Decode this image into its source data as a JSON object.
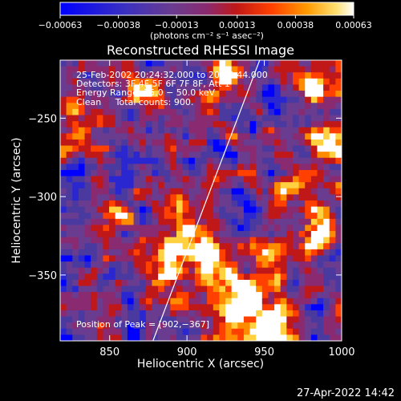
{
  "chart_data": {
    "type": "heatmap",
    "title": "Reconstructed RHESSI Image",
    "xlabel": "Heliocentric X (arcsec)",
    "ylabel": "Heliocentric Y (arcsec)",
    "xlim": [
      818,
      1000
    ],
    "ylim": [
      -392,
      -213
    ],
    "x_ticks": [
      850,
      900,
      950,
      1000
    ],
    "x_tick_labels": [
      "850",
      "900",
      "950",
      "1000"
    ],
    "y_ticks": [
      -250,
      -300,
      -350
    ],
    "y_tick_labels": [
      "−250",
      "−300",
      "−350"
    ],
    "colorbar": {
      "range": [
        -0.00063,
        0.00063
      ],
      "ticks": [
        -0.00063,
        -0.00038,
        -0.00013,
        0.00013,
        0.00038,
        0.00063
      ],
      "tick_labels": [
        "−0.00063",
        "−0.00038",
        "−0.00013",
        "0.00013",
        "0.00038",
        "0.00063"
      ],
      "units": "(photons cm⁻² s⁻¹ asec⁻²)"
    },
    "annotations": [
      "25-Feb-2002 20:24:32.000 to 20:25:44.000",
      "Detectors: 3F 4F 5F 6F 7F 8F, Att 1",
      "Energy Range: 25.0 − 50.0 keV",
      "Clean     Total counts: 900."
    ],
    "peak_label": "Position of Peak = [902,−367]",
    "peak": [
      902,
      -367
    ],
    "limb_line": [
      [
        878,
        -392
      ],
      [
        947,
        -213
      ]
    ],
    "colormap": [
      "#0000ff",
      "#2a26d0",
      "#4a3aa0",
      "#6a3c90",
      "#8a2a70",
      "#c01818",
      "#ff4000",
      "#ff8c00",
      "#ffd040",
      "#ffffff"
    ],
    "grid": false,
    "legend": "none"
  },
  "footer_date": "27-Apr-2022 14:42"
}
